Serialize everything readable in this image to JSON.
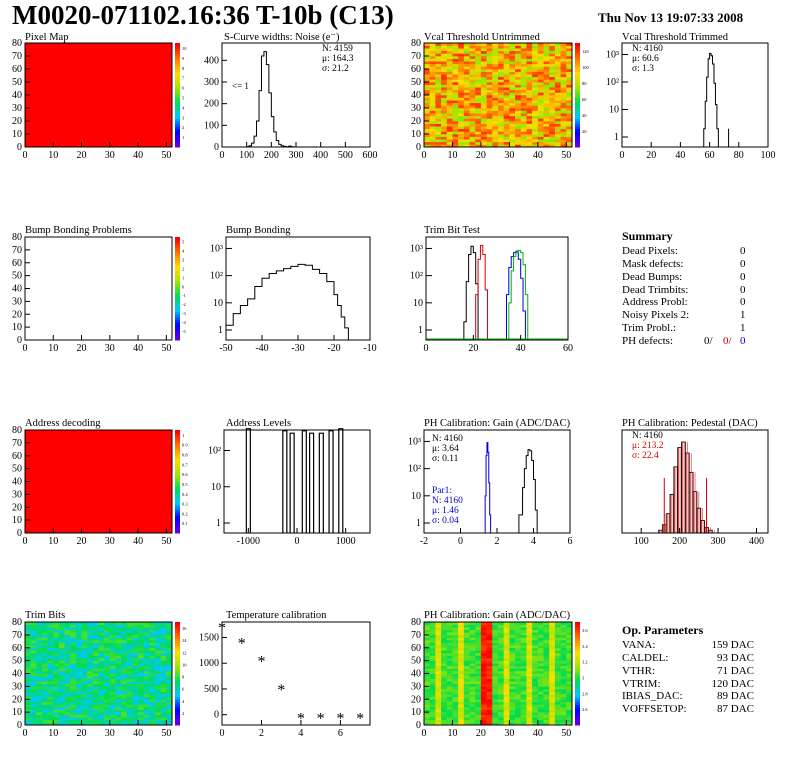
{
  "header": {
    "title": "M0020-071102.16:36 T-10b (C13)",
    "date": "Thu Nov 13 19:07:33 2008"
  },
  "colors": {
    "pixelmap_fill": "#ff0000",
    "trimbit_fill": "#2fd75a",
    "series_black": "#000000",
    "series_red": "#d40000",
    "series_green": "#00b400",
    "series_blue": "#0000d4"
  },
  "chart_data": [
    {
      "id": "pixel-map",
      "type": "heatmap",
      "title": "Pixel Map",
      "x_ticks": [
        0,
        10,
        20,
        30,
        40,
        50
      ],
      "y_ticks": [
        0,
        10,
        20,
        30,
        40,
        50,
        60,
        70,
        80
      ],
      "xlim": [
        0,
        52
      ],
      "ylim": [
        0,
        80
      ],
      "fill": "uniform-red",
      "colorbar_ticks": [
        1,
        2,
        3,
        4,
        5,
        6,
        7,
        8,
        9,
        10
      ]
    },
    {
      "id": "scurve-noise",
      "type": "line",
      "title": "S-Curve widths: Noise (e⁻)",
      "xlim": [
        0,
        600
      ],
      "ylim": [
        0,
        480
      ],
      "x_ticks": [
        0,
        100,
        200,
        300,
        400,
        500,
        600
      ],
      "y_ticks": [
        0,
        100,
        200,
        300,
        400
      ],
      "stats": [
        "N: 4159",
        "μ: 164.3",
        "σ: 21.2"
      ],
      "annotation": "<= 1",
      "x": [
        90,
        100,
        110,
        120,
        130,
        140,
        150,
        160,
        170,
        180,
        190,
        200,
        210,
        220,
        230,
        240,
        250,
        260,
        270,
        280,
        290,
        300
      ],
      "y": [
        0,
        2,
        6,
        18,
        50,
        120,
        260,
        420,
        440,
        380,
        250,
        140,
        70,
        30,
        12,
        6,
        3,
        1,
        4,
        1,
        0,
        0
      ]
    },
    {
      "id": "vcal-untrimmed",
      "type": "heatmap",
      "title": "Vcal Threshold Untrimmed",
      "x_ticks": [
        0,
        10,
        20,
        30,
        40,
        50
      ],
      "y_ticks": [
        0,
        10,
        20,
        30,
        40,
        50,
        60,
        70,
        80
      ],
      "xlim": [
        0,
        52
      ],
      "ylim": [
        0,
        80
      ],
      "colorbar_ticks": [
        20,
        40,
        60,
        80,
        100,
        120
      ]
    },
    {
      "id": "vcal-trimmed",
      "type": "line",
      "title": "Vcal Threshold Trimmed",
      "log_y": true,
      "xlim": [
        0,
        100
      ],
      "x_ticks": [
        0,
        20,
        40,
        60,
        80,
        100
      ],
      "y_ticks": [
        "1",
        "10",
        "10²",
        "10³"
      ],
      "stats": [
        "N: 4160",
        "μ: 60.6",
        "σ:  1.3"
      ],
      "x": [
        55,
        56,
        57,
        58,
        59,
        60,
        61,
        62,
        63,
        64,
        65,
        66,
        67,
        73
      ],
      "y": [
        0,
        2,
        20,
        150,
        700,
        1100,
        900,
        450,
        90,
        15,
        2,
        0,
        0,
        2
      ]
    },
    {
      "id": "bump-problems",
      "type": "heatmap",
      "title": "Bump Bonding Problems",
      "x_ticks": [
        0,
        10,
        20,
        30,
        40,
        50
      ],
      "y_ticks": [
        0,
        10,
        20,
        30,
        40,
        50,
        60,
        70,
        80
      ],
      "xlim": [
        0,
        52
      ],
      "ylim": [
        0,
        80
      ],
      "fill": "empty",
      "colorbar_ticks": [
        -5,
        -4,
        -3,
        -2,
        -1,
        0,
        1,
        2,
        3,
        4,
        5
      ]
    },
    {
      "id": "bump-bonding",
      "type": "line",
      "title": "Bump Bonding",
      "log_y": true,
      "xlim": [
        -50,
        -10
      ],
      "x_ticks": [
        -50,
        -40,
        -30,
        -20,
        -10
      ],
      "y_ticks": [
        "1",
        "10",
        "10²",
        "10³"
      ],
      "x": [
        -50,
        -48,
        -46,
        -44,
        -42,
        -40,
        -38,
        -36,
        -34,
        -32,
        -30,
        -28,
        -26,
        -24,
        -22,
        -20,
        -19,
        -18,
        -17,
        -16
      ],
      "y": [
        1.5,
        4,
        8,
        14,
        40,
        80,
        120,
        150,
        180,
        220,
        260,
        240,
        170,
        120,
        60,
        20,
        8,
        3,
        1.2,
        0
      ]
    },
    {
      "id": "trim-bit-test",
      "type": "line",
      "title": "Trim Bit Test",
      "log_y": true,
      "xlim": [
        0,
        60
      ],
      "x_ticks": [
        0,
        20,
        40,
        60
      ],
      "y_ticks": [
        "1",
        "10",
        "10²",
        "10³"
      ],
      "series": [
        {
          "color": "black",
          "x": [
            14,
            16,
            17,
            18,
            19,
            20,
            21,
            22
          ],
          "y": [
            0,
            2,
            60,
            600,
            1200,
            700,
            50,
            0
          ]
        },
        {
          "color": "red",
          "x": [
            20,
            21,
            22,
            23,
            24,
            25,
            26
          ],
          "y": [
            0,
            20,
            400,
            1300,
            600,
            30,
            0
          ]
        },
        {
          "color": "blue",
          "x": [
            33,
            34,
            35,
            36,
            37,
            38,
            39,
            40,
            41,
            42
          ],
          "y": [
            0,
            20,
            200,
            500,
            700,
            800,
            400,
            80,
            5,
            0
          ]
        },
        {
          "color": "green",
          "x": [
            34,
            35,
            36,
            37,
            38,
            39,
            40,
            41,
            42,
            43
          ],
          "y": [
            0,
            10,
            150,
            500,
            700,
            850,
            700,
            250,
            20,
            0
          ]
        }
      ]
    },
    {
      "id": "address-decoding",
      "type": "heatmap",
      "title": "Address decoding",
      "x_ticks": [
        0,
        10,
        20,
        30,
        40,
        50
      ],
      "y_ticks": [
        0,
        10,
        20,
        30,
        40,
        50,
        60,
        70,
        80
      ],
      "xlim": [
        0,
        52
      ],
      "ylim": [
        0,
        80
      ],
      "fill": "uniform-red",
      "colorbar_ticks": [
        0.1,
        0.2,
        0.3,
        0.4,
        0.5,
        0.6,
        0.7,
        0.8,
        0.9,
        1
      ]
    },
    {
      "id": "address-levels",
      "type": "bar",
      "title": "Address Levels",
      "log_y": true,
      "xlim": [
        -1500,
        1500
      ],
      "x_ticks": [
        -1000,
        0,
        1000
      ],
      "y_ticks": [
        "1",
        "10",
        "10²"
      ],
      "peaks": [
        -1000,
        -250,
        -100,
        150,
        300,
        500,
        700,
        900
      ],
      "heights": [
        400,
        350,
        300,
        350,
        300,
        300,
        350,
        400
      ]
    },
    {
      "id": "ph-gain",
      "type": "line",
      "title": "PH Calibration: Gain (ADC/DAC)",
      "log_y": true,
      "xlim": [
        -2,
        6
      ],
      "x_ticks": [
        -2,
        0,
        2,
        4,
        6
      ],
      "y_ticks": [
        "1",
        "10",
        "10²",
        "10³"
      ],
      "stats": [
        "N: 4160",
        "μ: 3.64",
        "σ: 0.11"
      ],
      "stats2": [
        "Par1:",
        "N: 4160",
        "μ: 1.46",
        "σ: 0.04"
      ],
      "series": [
        {
          "color": "black",
          "x": [
            3.0,
            3.2,
            3.4,
            3.5,
            3.6,
            3.7,
            3.8,
            3.9,
            4.0,
            4.1,
            4.2
          ],
          "y": [
            0,
            2,
            20,
            100,
            300,
            500,
            450,
            200,
            40,
            3,
            0
          ]
        },
        {
          "color": "blue",
          "x": [
            1.3,
            1.35,
            1.4,
            1.45,
            1.5,
            1.55,
            1.6,
            1.65
          ],
          "y": [
            0,
            10,
            300,
            900,
            400,
            30,
            2,
            0
          ]
        }
      ]
    },
    {
      "id": "ph-pedestal",
      "type": "bar",
      "title": "PH Calibration: Pedestal (DAC)",
      "xlim": [
        50,
        430
      ],
      "x_ticks": [
        100,
        200,
        300,
        400
      ],
      "stats": [
        "N: 4160",
        "μ: 213.2",
        "σ: 22.4"
      ],
      "centers": [
        150,
        160,
        170,
        180,
        190,
        200,
        210,
        220,
        230,
        240,
        250,
        260,
        270,
        280
      ],
      "counts": [
        2,
        6,
        14,
        28,
        48,
        62,
        66,
        58,
        44,
        30,
        18,
        9,
        4,
        2
      ]
    },
    {
      "id": "trim-bits",
      "type": "heatmap",
      "title": "Trim Bits",
      "x_ticks": [
        0,
        10,
        20,
        30,
        40,
        50
      ],
      "y_ticks": [
        0,
        10,
        20,
        30,
        40,
        50,
        60,
        70,
        80
      ],
      "xlim": [
        0,
        52
      ],
      "ylim": [
        0,
        80
      ],
      "colorbar_ticks": [
        2,
        4,
        6,
        8,
        10,
        12,
        14,
        16
      ]
    },
    {
      "id": "temperature-calibration",
      "type": "scatter",
      "title": "Temperature calibration",
      "xlim": [
        0,
        7.5
      ],
      "ylim": [
        -200,
        1800
      ],
      "x_ticks": [
        0,
        2,
        4,
        6
      ],
      "y_ticks": [
        0,
        500,
        1000,
        1500
      ],
      "x": [
        0,
        1,
        2,
        3,
        4,
        5,
        6,
        7
      ],
      "y": [
        1680,
        1380,
        1030,
        480,
        -70,
        -70,
        -70,
        -70
      ]
    },
    {
      "id": "ph-gain-map",
      "type": "heatmap",
      "title": "PH Calibration: Gain (ADC/DAC)",
      "x_ticks": [
        0,
        10,
        20,
        30,
        40,
        50
      ],
      "y_ticks": [
        0,
        10,
        20,
        30,
        40,
        50,
        60,
        70,
        80
      ],
      "xlim": [
        0,
        52
      ],
      "ylim": [
        0,
        80
      ],
      "colorbar_ticks": [
        2.6,
        2.8,
        3,
        3.2,
        3.4,
        3.6
      ]
    }
  ],
  "summary": {
    "title": "Summary",
    "rows": [
      {
        "label": "Dead Pixels:",
        "value": "0"
      },
      {
        "label": "Mask defects:",
        "value": "0"
      },
      {
        "label": "Dead Bumps:",
        "value": "0"
      },
      {
        "label": "Dead Trimbits:",
        "value": "0"
      },
      {
        "label": "Address Probl:",
        "value": "0"
      },
      {
        "label": "Noisy Pixels 2:",
        "value": "1"
      },
      {
        "label": "Trim Probl.:",
        "value": "1"
      }
    ],
    "ph_defects": {
      "label": "PH defects:",
      "black": "0/",
      "red": "0/",
      "blue": "0"
    }
  },
  "op_parameters": {
    "title": "Op. Parameters",
    "rows": [
      {
        "label": "VANA:",
        "value": "159 DAC"
      },
      {
        "label": "CALDEL:",
        "value": "93 DAC"
      },
      {
        "label": "VTHR:",
        "value": "71 DAC"
      },
      {
        "label": "VTRIM:",
        "value": "120 DAC"
      },
      {
        "label": "IBIAS_DAC:",
        "value": "89 DAC"
      },
      {
        "label": "VOFFSETOP:",
        "value": "87 DAC"
      }
    ]
  }
}
